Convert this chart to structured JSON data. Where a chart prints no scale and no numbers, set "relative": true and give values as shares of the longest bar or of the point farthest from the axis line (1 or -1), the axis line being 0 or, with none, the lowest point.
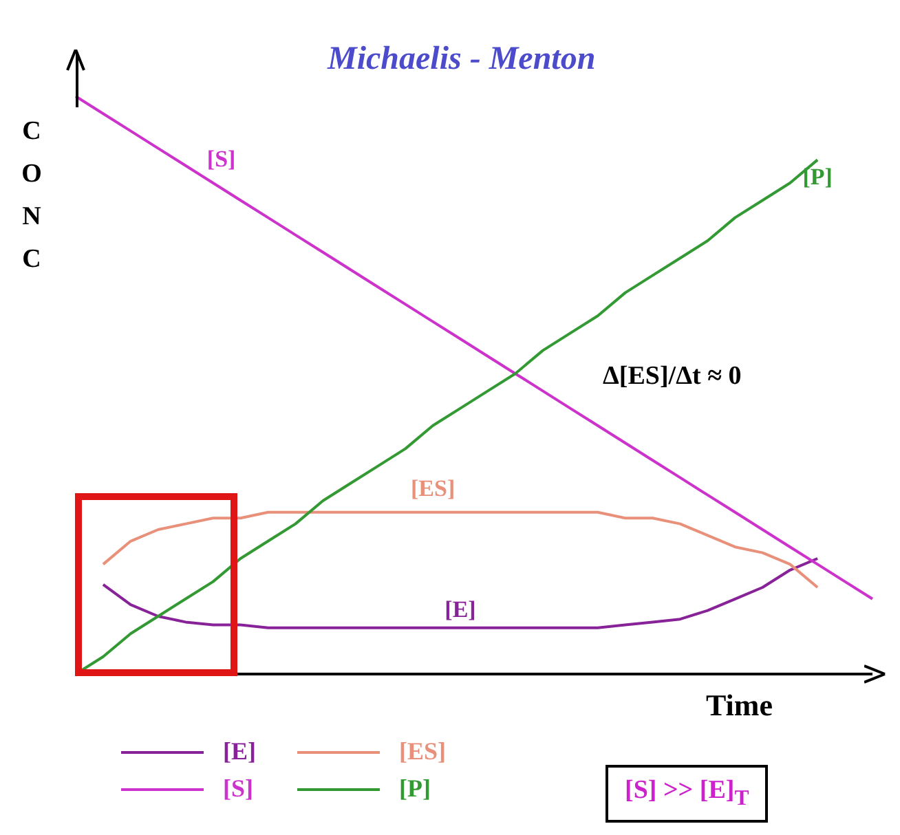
{
  "chart_data": {
    "type": "line",
    "title": "Michaelis - Menton",
    "xlabel": "Time",
    "ylabel": "CONC",
    "relative": true,
    "legend": "bottom left",
    "marker": "none",
    "line_style": "solid",
    "categories": [
      null,
      null,
      null,
      null,
      null,
      null,
      null,
      null,
      null,
      null,
      null,
      null,
      null,
      null,
      null,
      null,
      null,
      null,
      null,
      null,
      null,
      null,
      null,
      null,
      null,
      null,
      null,
      null,
      null,
      null
    ],
    "series": [
      {
        "name": "[E]",
        "color": "#882299",
        "values": [
          null,
          0.155,
          0.12,
          0.1,
          0.09,
          0.085,
          0.085,
          0.08,
          0.08,
          0.08,
          0.08,
          0.08,
          0.08,
          0.08,
          0.08,
          0.08,
          0.08,
          0.08,
          0.08,
          0.08,
          0.085,
          0.09,
          0.095,
          0.11,
          0.13,
          0.15,
          0.18,
          0.2,
          null,
          null
        ]
      },
      {
        "name": "[ES]",
        "color": "#e8907a",
        "values": [
          null,
          0.19,
          0.23,
          0.25,
          0.26,
          0.27,
          0.27,
          0.28,
          0.28,
          0.28,
          0.28,
          0.28,
          0.28,
          0.28,
          0.28,
          0.28,
          0.28,
          0.28,
          0.28,
          0.28,
          0.27,
          0.27,
          0.26,
          0.24,
          0.22,
          0.21,
          0.19,
          0.15,
          null,
          null
        ]
      },
      {
        "name": "[S]",
        "color": "#cc33cc",
        "values": [
          1,
          0.97,
          0.94,
          0.91,
          0.88,
          0.85,
          0.82,
          0.79,
          0.76,
          0.73,
          0.7,
          0.67,
          0.64,
          0.61,
          0.58,
          0.55,
          0.52,
          0.49,
          0.46,
          0.43,
          0.4,
          0.37,
          0.34,
          0.31,
          0.28,
          0.25,
          0.22,
          0.19,
          0.16,
          0.13
        ]
      },
      {
        "name": "[P]",
        "color": "#339933",
        "values": [
          0,
          0.03,
          0.07,
          0.1,
          0.13,
          0.16,
          0.2,
          0.23,
          0.26,
          0.3,
          0.33,
          0.36,
          0.39,
          0.43,
          0.46,
          0.49,
          0.52,
          0.56,
          0.59,
          0.62,
          0.66,
          0.69,
          0.72,
          0.75,
          0.79,
          0.82,
          0.85,
          0.89,
          null,
          null
        ]
      }
    ],
    "annotations": [
      "Δ[ES]/Δt ≈ 0",
      "[S] >> [E]$_{T}$"
    ]
  }
}
